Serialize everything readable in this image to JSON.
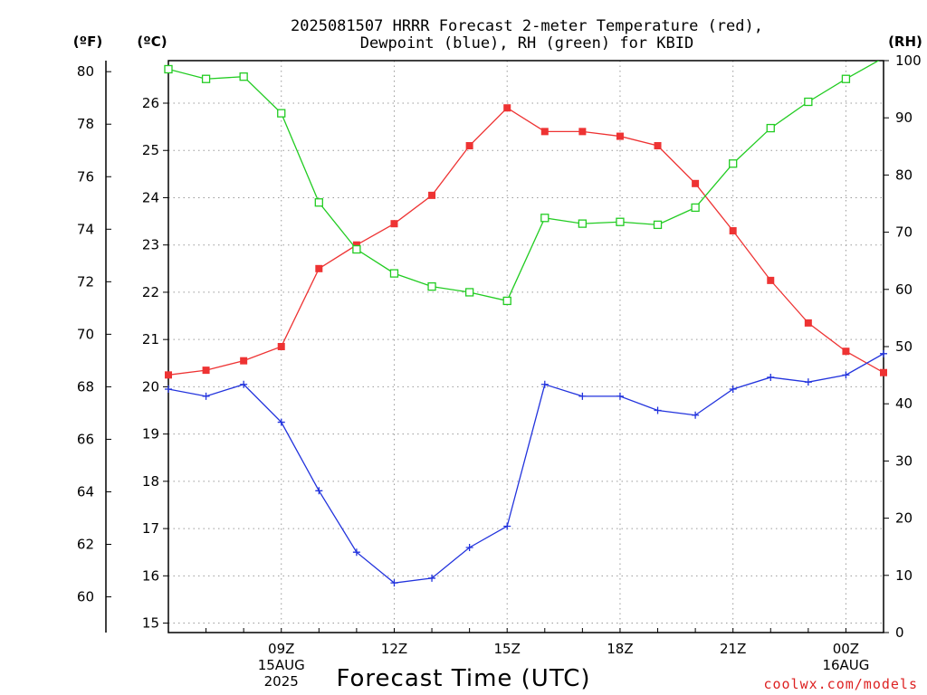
{
  "chart_data": {
    "type": "line",
    "title": "2025081507 HRRR Forecast 2-meter Temperature (red),",
    "subtitle": "Dewpoint (blue), RH (green) for KBID",
    "xlabel": "Forecast Time (UTC)",
    "credit": "coolwx.com/models",
    "units": {
      "fahrenheit": "(ºF)",
      "celsius": "(ºC)",
      "rh": "(RH)"
    },
    "x": [
      "06Z",
      "07Z",
      "08Z",
      "09Z",
      "10Z",
      "11Z",
      "12Z",
      "13Z",
      "14Z",
      "15Z",
      "16Z",
      "17Z",
      "18Z",
      "19Z",
      "20Z",
      "21Z",
      "22Z",
      "23Z",
      "00Z",
      "01Z"
    ],
    "x_ticks": [
      {
        "hour": "09Z",
        "lines": [
          "09Z",
          "15AUG",
          "2025"
        ]
      },
      {
        "hour": "12Z",
        "lines": [
          "12Z"
        ]
      },
      {
        "hour": "15Z",
        "lines": [
          "15Z"
        ]
      },
      {
        "hour": "18Z",
        "lines": [
          "18Z"
        ]
      },
      {
        "hour": "21Z",
        "lines": [
          "21Z"
        ]
      },
      {
        "hour": "00Z",
        "lines": [
          "00Z",
          "16AUG"
        ]
      }
    ],
    "celsius_axis": {
      "range": [
        14.8,
        26.9
      ],
      "ticks": [
        15,
        16,
        17,
        18,
        19,
        20,
        21,
        22,
        23,
        24,
        25,
        26
      ]
    },
    "fahrenheit_axis": {
      "ticks": [
        60,
        62,
        64,
        66,
        68,
        70,
        72,
        74,
        76,
        78,
        80
      ]
    },
    "rh_axis": {
      "range": [
        0,
        100
      ],
      "ticks": [
        0,
        10,
        20,
        30,
        40,
        50,
        60,
        70,
        80,
        90,
        100
      ]
    },
    "series": [
      {
        "name": "Temperature",
        "color": "#ee3333",
        "marker": "filled-square",
        "axis": "celsius",
        "values": [
          20.25,
          20.35,
          20.55,
          20.85,
          22.5,
          23.0,
          23.45,
          24.05,
          25.1,
          25.9,
          25.4,
          25.4,
          25.3,
          25.1,
          24.3,
          23.3,
          22.25,
          21.35,
          20.75,
          20.3
        ]
      },
      {
        "name": "Dewpoint",
        "color": "#2233dd",
        "marker": "plus",
        "axis": "celsius",
        "values": [
          19.95,
          19.8,
          20.05,
          19.25,
          17.8,
          16.5,
          15.85,
          15.95,
          16.6,
          17.05,
          20.05,
          19.8,
          19.8,
          19.5,
          19.4,
          19.95,
          20.2,
          20.1,
          20.25,
          20.7
        ]
      },
      {
        "name": "RH",
        "color": "#22cc22",
        "marker": "open-square",
        "axis": "rh",
        "values": [
          98.5,
          96.8,
          97.2,
          90.8,
          75.2,
          67.0,
          62.8,
          60.5,
          59.5,
          58.0,
          72.5,
          71.5,
          71.8,
          71.3,
          74.3,
          82.0,
          88.2,
          92.8,
          96.8,
          100.5
        ]
      }
    ],
    "grid": true
  }
}
